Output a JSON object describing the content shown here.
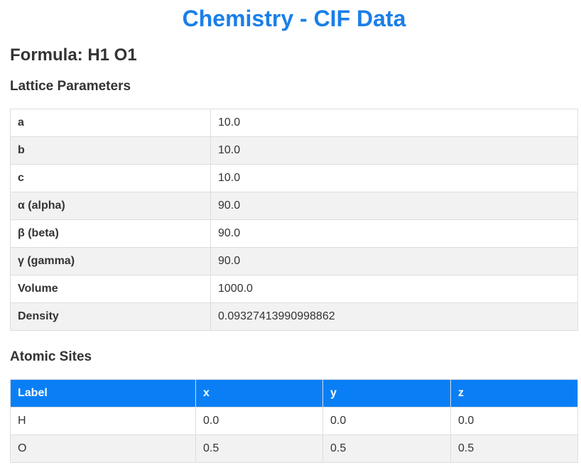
{
  "title": "Chemistry - CIF Data",
  "formula_heading": "Formula: H1 O1",
  "lattice": {
    "heading": "Lattice Parameters",
    "rows": [
      {
        "key": "a",
        "value": "10.0"
      },
      {
        "key": "b",
        "value": "10.0"
      },
      {
        "key": "c",
        "value": "10.0"
      },
      {
        "key": "α (alpha)",
        "value": "90.0"
      },
      {
        "key": "β (beta)",
        "value": "90.0"
      },
      {
        "key": "γ (gamma)",
        "value": "90.0"
      },
      {
        "key": "Volume",
        "value": "1000.0"
      },
      {
        "key": "Density",
        "value": "0.09327413990998862"
      }
    ]
  },
  "sites": {
    "heading": "Atomic Sites",
    "columns": [
      "Label",
      "x",
      "y",
      "z"
    ],
    "rows": [
      [
        "H",
        "0.0",
        "0.0",
        "0.0"
      ],
      [
        "O",
        "0.5",
        "0.5",
        "0.5"
      ]
    ]
  },
  "colors": {
    "title": "#1a7fe8",
    "table_header": "#0a7ff5",
    "stripe": "#f2f2f2",
    "border": "#dddddd"
  }
}
